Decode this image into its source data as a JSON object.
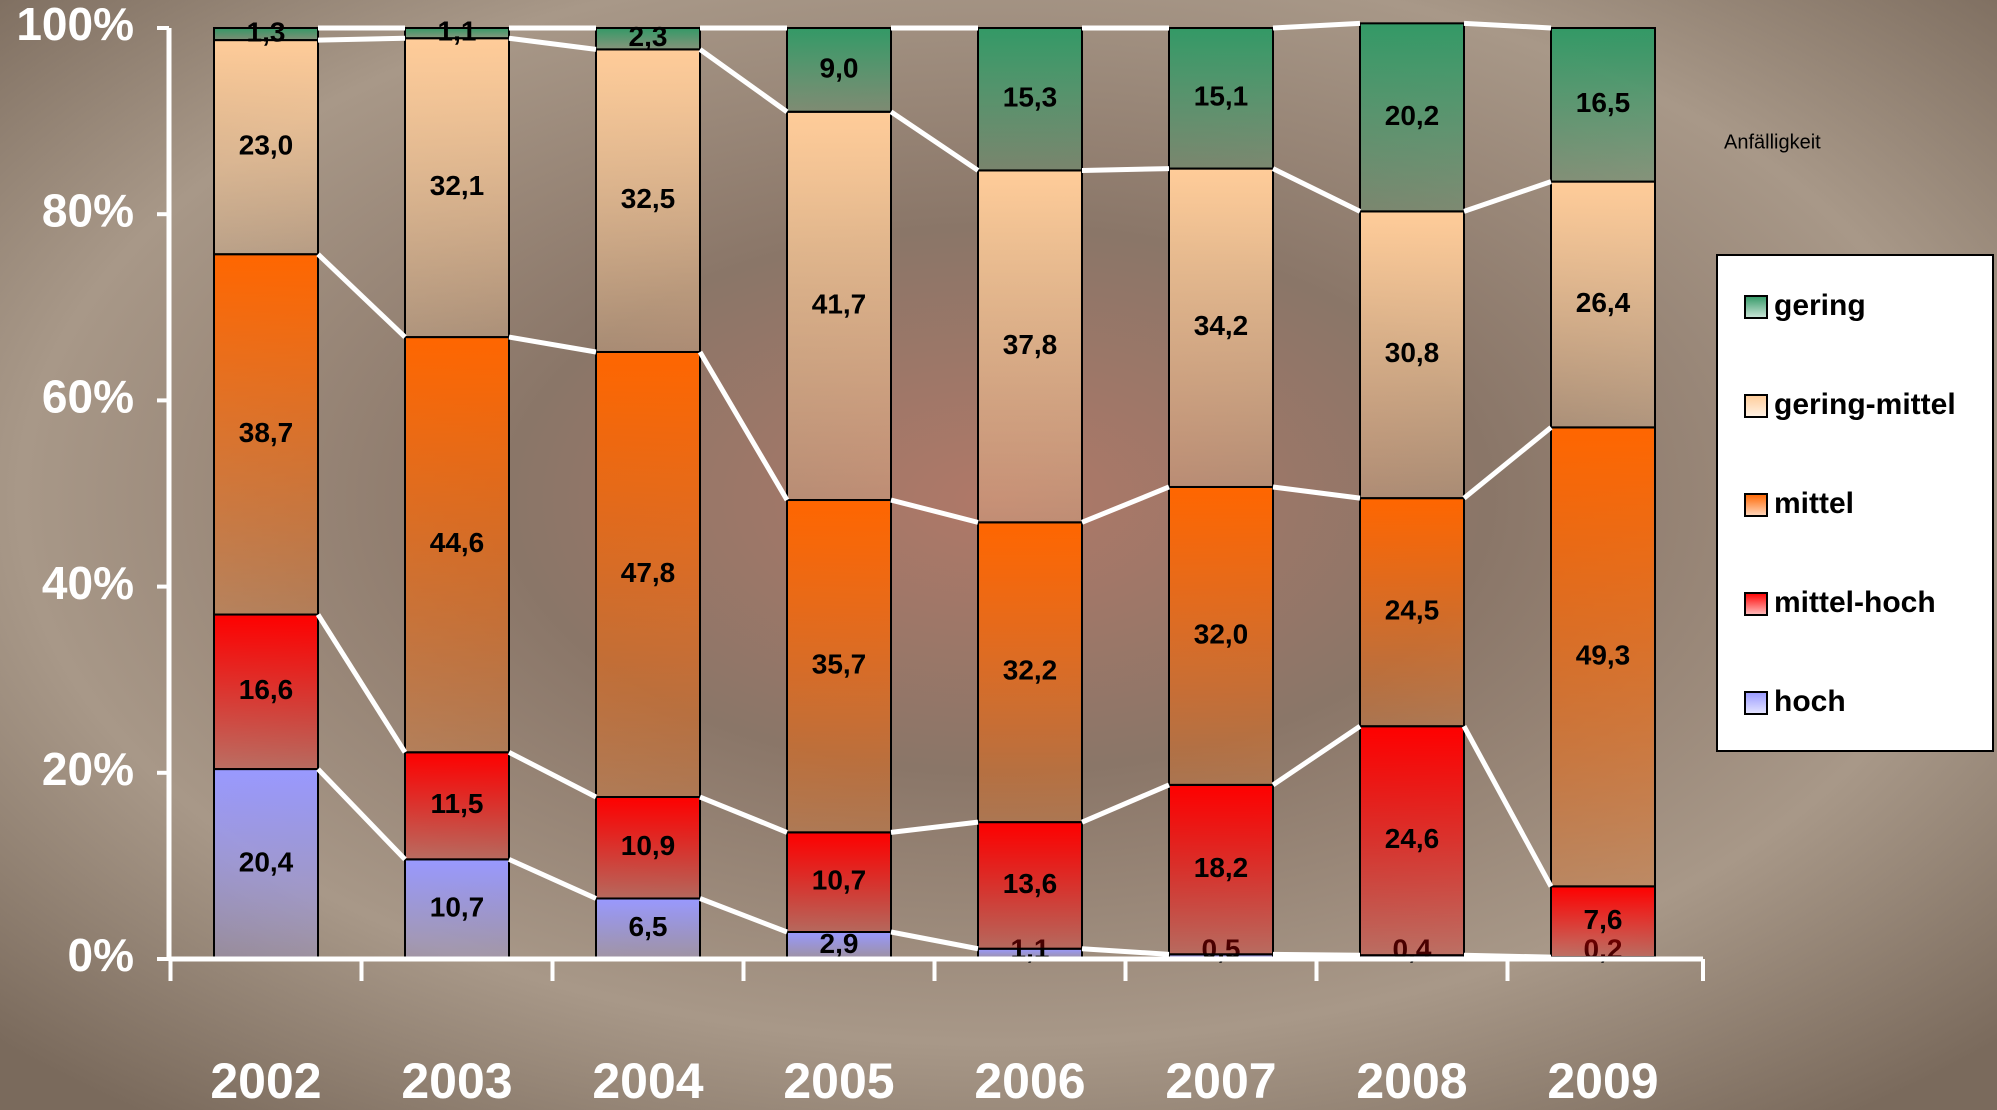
{
  "chart_data": {
    "type": "stacked-bar",
    "categories": [
      "2002",
      "2003",
      "2004",
      "2005",
      "2006",
      "2007",
      "2008",
      "2009"
    ],
    "legend_title": "Anfälligkeit",
    "legend": "right",
    "ylim": [
      0,
      100
    ],
    "yticks": [
      {
        "value": 0,
        "label": "0%"
      },
      {
        "value": 20,
        "label": "20%"
      },
      {
        "value": 40,
        "label": "40%"
      },
      {
        "value": 60,
        "label": "60%"
      },
      {
        "value": 80,
        "label": "80%"
      },
      {
        "value": 100,
        "label": "100%"
      }
    ],
    "series": [
      {
        "name": "hoch",
        "color": "#9999ff",
        "values": [
          20.4,
          10.7,
          6.5,
          2.9,
          1.1,
          0.5,
          0.4,
          0.2
        ],
        "value_labels": [
          "20,4",
          "10,7",
          "6,5",
          "2,9",
          "1,1",
          "0,5",
          "0,4",
          "0,2"
        ]
      },
      {
        "name": "mittel-hoch",
        "color": "#ff0000",
        "values": [
          16.6,
          11.5,
          10.9,
          10.7,
          13.6,
          18.2,
          24.6,
          7.6
        ],
        "value_labels": [
          "16,6",
          "11,5",
          "10,9",
          "10,7",
          "13,6",
          "18,2",
          "24,6",
          "7,6"
        ]
      },
      {
        "name": "mittel",
        "color": "#ff6600",
        "values": [
          38.7,
          44.6,
          47.8,
          35.7,
          32.2,
          32.0,
          24.5,
          49.3
        ],
        "value_labels": [
          "38,7",
          "44,6",
          "47,8",
          "35,7",
          "32,2",
          "32,0",
          "24,5",
          "49,3"
        ]
      },
      {
        "name": "gering-mittel",
        "color": "#ffcc99",
        "values": [
          23.0,
          32.1,
          32.5,
          41.7,
          37.8,
          34.2,
          30.8,
          26.4
        ],
        "value_labels": [
          "23,0",
          "32,1",
          "32,5",
          "41,7",
          "37,8",
          "34,2",
          "30,8",
          "26,4"
        ]
      },
      {
        "name": "gering",
        "color": "#339966",
        "values": [
          1.3,
          1.1,
          2.3,
          9.0,
          15.3,
          15.1,
          20.2,
          16.5
        ],
        "value_labels": [
          "1,3",
          "1,1",
          "2,3",
          "9,0",
          "15,3",
          "15,1",
          "20,2",
          "16,5"
        ]
      }
    ]
  }
}
